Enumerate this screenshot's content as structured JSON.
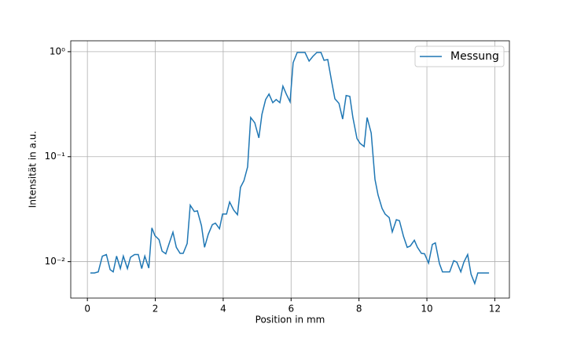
{
  "chart_data": {
    "type": "line",
    "xlabel": "Position in mm",
    "ylabel": "Intensität in a.u.",
    "x": [
      0.09,
      0.21,
      0.32,
      0.44,
      0.56,
      0.67,
      0.76,
      0.86,
      0.97,
      1.06,
      1.18,
      1.27,
      1.39,
      1.5,
      1.6,
      1.69,
      1.81,
      1.9,
      1.99,
      2.11,
      2.2,
      2.31,
      2.41,
      2.52,
      2.62,
      2.73,
      2.82,
      2.94,
      3.03,
      3.15,
      3.24,
      3.36,
      3.45,
      3.56,
      3.68,
      3.77,
      3.89,
      3.98,
      4.1,
      4.19,
      4.31,
      4.42,
      4.51,
      4.61,
      4.72,
      4.81,
      4.93,
      5.05,
      5.14,
      5.25,
      5.35,
      5.46,
      5.56,
      5.67,
      5.76,
      5.86,
      5.97,
      6.06,
      6.18,
      6.3,
      6.41,
      6.53,
      6.64,
      6.76,
      6.88,
      6.97,
      7.08,
      7.2,
      7.29,
      7.41,
      7.52,
      7.62,
      7.73,
      7.82,
      7.94,
      8.03,
      8.15,
      8.24,
      8.36,
      8.47,
      8.56,
      8.68,
      8.77,
      8.89,
      8.98,
      9.1,
      9.19,
      9.31,
      9.42,
      9.51,
      9.63,
      9.72,
      9.84,
      9.93,
      10.05,
      10.16,
      10.25,
      10.37,
      10.46,
      10.58,
      10.67,
      10.79,
      10.88,
      11.0,
      11.09,
      11.2,
      11.3,
      11.41,
      11.5,
      11.62,
      11.74,
      11.83
    ],
    "series": [
      {
        "name": "Messung",
        "color": "#1f77b4",
        "values": [
          0.0078,
          0.0078,
          0.008,
          0.0113,
          0.0117,
          0.0084,
          0.008,
          0.0113,
          0.0086,
          0.0113,
          0.0086,
          0.011,
          0.0117,
          0.0117,
          0.0086,
          0.0113,
          0.0087,
          0.021,
          0.0177,
          0.0162,
          0.0126,
          0.0119,
          0.0149,
          0.0191,
          0.0137,
          0.012,
          0.012,
          0.0149,
          0.0345,
          0.03,
          0.0305,
          0.022,
          0.0137,
          0.0182,
          0.0225,
          0.0233,
          0.0206,
          0.0284,
          0.0284,
          0.037,
          0.031,
          0.028,
          0.051,
          0.059,
          0.08,
          0.236,
          0.21,
          0.151,
          0.253,
          0.35,
          0.395,
          0.327,
          0.35,
          0.327,
          0.47,
          0.395,
          0.333,
          0.786,
          0.983,
          0.983,
          0.983,
          0.813,
          0.9,
          0.983,
          0.983,
          0.828,
          0.842,
          0.51,
          0.356,
          0.322,
          0.228,
          0.382,
          0.375,
          0.236,
          0.149,
          0.134,
          0.125,
          0.236,
          0.168,
          0.0609,
          0.0432,
          0.0322,
          0.0284,
          0.0263,
          0.0192,
          0.0251,
          0.0246,
          0.0174,
          0.0137,
          0.0141,
          0.016,
          0.0137,
          0.012,
          0.0119,
          0.0097,
          0.0146,
          0.0151,
          0.0096,
          0.008,
          0.008,
          0.008,
          0.0102,
          0.0099,
          0.008,
          0.0099,
          0.0117,
          0.0076,
          0.0062,
          0.0078,
          0.0078,
          0.0078,
          0.0078
        ]
      }
    ],
    "xlim": [
      -0.49,
      12.43
    ],
    "xticks": [
      0,
      2,
      4,
      6,
      8,
      10,
      12
    ],
    "ylim": [
      0.0045,
      1.27
    ],
    "yscale": "log",
    "yticks": [
      {
        "value": 0.01,
        "label": "10⁻²"
      },
      {
        "value": 0.1,
        "label": "10⁻¹"
      },
      {
        "value": 1,
        "label": "10⁰"
      }
    ],
    "grid": true,
    "legend": "upper right"
  }
}
